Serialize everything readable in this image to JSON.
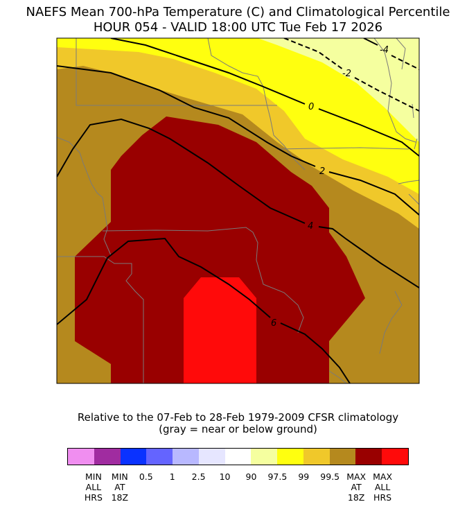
{
  "header": {
    "title_line1": "NAEFS Mean 700-hPa Temperature (C) and Climatological Percentile",
    "title_line2": "HOUR 054 - VALID 18:00 UTC Tue Feb 17 2026"
  },
  "map": {
    "contour_labels": [
      "-4",
      "-2",
      "0",
      "2",
      "4",
      "6"
    ],
    "fill_colors": {
      "p97_5": "#f5ff9f",
      "p99": "#ffff0f",
      "p99_5": "#f0c82a",
      "max_at_18z": "#b5891e",
      "max_all_hrs": "#990000",
      "above_max": "#ff0a0a"
    },
    "contour_color": "#000000",
    "border_color": "#7a7a7a"
  },
  "footer": {
    "note_line1": "Relative to the 07-Feb to 28-Feb 1979-2009 CFSR climatology",
    "note_line2": "(gray = near or below ground)"
  },
  "colorbar": {
    "colors": [
      "#f08ef0",
      "#a02ca0",
      "#0a32ff",
      "#6464ff",
      "#b8b8ff",
      "#e6e6ff",
      "#ffffff",
      "#f5ff9f",
      "#ffff0f",
      "#f0c82a",
      "#b5891e",
      "#990000",
      "#ff0a0a"
    ],
    "ticks": [
      "MIN\nALL\nHRS",
      "MIN\nAT\n18Z",
      "0.5",
      "1",
      "2.5",
      "10",
      "90",
      "97.5",
      "99",
      "99.5",
      "MAX\nAT\n18Z",
      "MAX\nALL\nHRS"
    ]
  }
}
